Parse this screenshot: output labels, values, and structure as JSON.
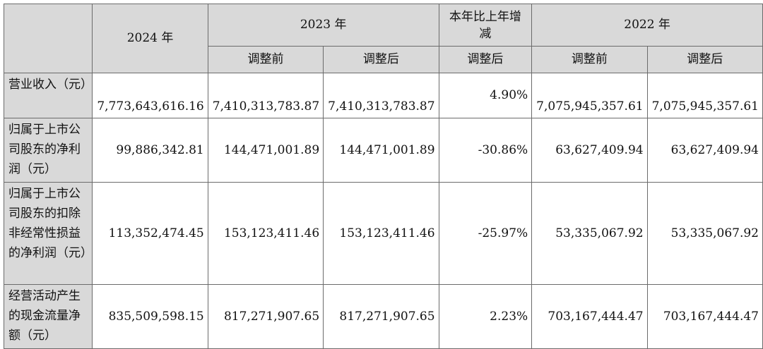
{
  "header": {
    "y2024": "2024 年",
    "y2023": "2023 年",
    "yoy": "本年比上年增减",
    "y2022": "2022 年",
    "sub": {
      "before_2023": "调整前",
      "after_2023": "调整后",
      "after_yoy": "调整后",
      "before_2022": "调整前",
      "after_2022": "调整后"
    }
  },
  "rows": [
    {
      "label": "营业收入（元）",
      "v2024": "7,773,643,616.16",
      "v2023_before": "7,410,313,783.87",
      "v2023_after": "7,410,313,783.87",
      "yoy": "4.90%",
      "v2022_before": "7,075,945,357.61",
      "v2022_after": "7,075,945,357.61"
    },
    {
      "label": "归属于上市公司股东的净利润（元）",
      "v2024": "99,886,342.81",
      "v2023_before": "144,471,001.89",
      "v2023_after": "144,471,001.89",
      "yoy": "-30.86%",
      "v2022_before": "63,627,409.94",
      "v2022_after": "63,627,409.94"
    },
    {
      "label": "归属于上市公司股东的扣除非经常性损益的净利润（元）",
      "v2024": "113,352,474.45",
      "v2023_before": "153,123,411.46",
      "v2023_after": "153,123,411.46",
      "yoy": "-25.97%",
      "v2022_before": "53,335,067.92",
      "v2022_after": "53,335,067.92"
    },
    {
      "label": "经营活动产生的现金流量净额（元）",
      "v2024": "835,509,598.15",
      "v2023_before": "817,271,907.65",
      "v2023_after": "817,271,907.65",
      "yoy": "2.23%",
      "v2022_before": "703,167,444.47",
      "v2022_after": "703,167,444.47"
    }
  ]
}
